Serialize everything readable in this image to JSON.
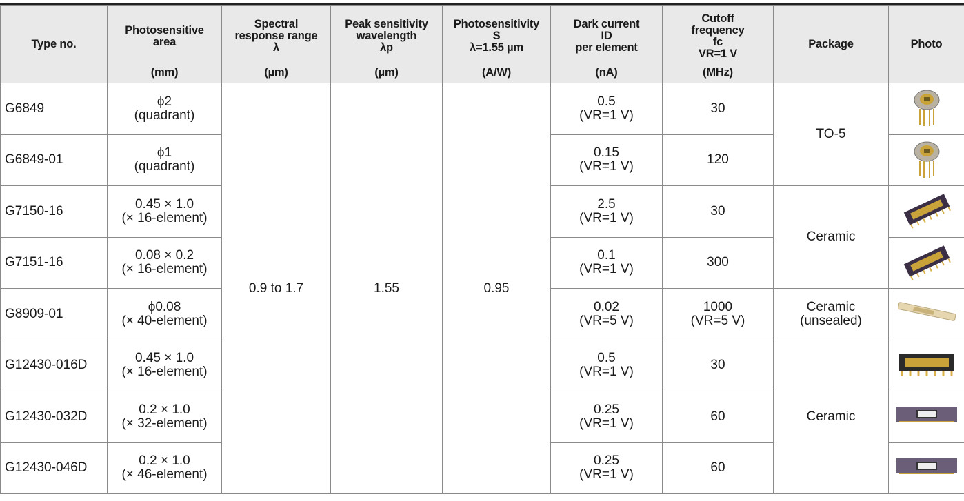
{
  "table": {
    "header": [
      {
        "lines": [
          "Type no."
        ]
      },
      {
        "lines": [
          "Photosensitive",
          "area"
        ],
        "unit": "(mm)"
      },
      {
        "lines": [
          "Spectral",
          "response range",
          "λ"
        ],
        "unit": "(µm)"
      },
      {
        "lines": [
          "Peak sensitivity",
          "wavelength",
          "λp"
        ],
        "unit": "(µm)"
      },
      {
        "lines": [
          "Photosensitivity",
          "S",
          "λ=1.55 µm"
        ],
        "unit": "(A/W)"
      },
      {
        "lines": [
          "Dark current",
          "ID",
          "per element"
        ],
        "unit": "(nA)"
      },
      {
        "lines": [
          "Cutoff",
          "frequency",
          "fc",
          "VR=1 V"
        ],
        "unit": "(MHz)"
      },
      {
        "lines": [
          "Package"
        ]
      },
      {
        "lines": [
          "Photo"
        ]
      }
    ],
    "spectral_range": "0.9 to 1.7",
    "peak_wavelength": "1.55",
    "photosensitivity": "0.95",
    "rows": [
      {
        "type": "G6849",
        "area": [
          "ϕ2",
          "(quadrant)"
        ],
        "dark": [
          "0.5",
          "(VR=1 V)"
        ],
        "cutoff": [
          "30"
        ],
        "package": "TO-5"
      },
      {
        "type": "G6849-01",
        "area": [
          "ϕ1",
          "(quadrant)"
        ],
        "dark": [
          "0.15",
          "(VR=1 V)"
        ],
        "cutoff": [
          "120"
        ],
        "package": null
      },
      {
        "type": "G7150-16",
        "area": [
          "0.45 × 1.0",
          "(× 16-element)"
        ],
        "dark": [
          "2.5",
          "(VR=1 V)"
        ],
        "cutoff": [
          "30"
        ],
        "package": "Ceramic"
      },
      {
        "type": "G7151-16",
        "area": [
          "0.08 × 0.2",
          "(× 16-element)"
        ],
        "dark": [
          "0.1",
          "(VR=1 V)"
        ],
        "cutoff": [
          "300"
        ],
        "package": null
      },
      {
        "type": "G8909-01",
        "area": [
          "ϕ0.08",
          "(× 40-element)"
        ],
        "dark": [
          "0.02",
          "(VR=5 V)"
        ],
        "cutoff": [
          "1000",
          "(VR=5 V)"
        ],
        "package": "Ceramic (unsealed)"
      },
      {
        "type": "G12430-016D",
        "area": [
          "0.45 × 1.0",
          "(× 16-element)"
        ],
        "dark": [
          "0.5",
          "(VR=1 V)"
        ],
        "cutoff": [
          "30"
        ],
        "package": "Ceramic"
      },
      {
        "type": "G12430-032D",
        "area": [
          "0.2 × 1.0",
          "(× 32-element)"
        ],
        "dark": [
          "0.25",
          "(VR=1 V)"
        ],
        "cutoff": [
          "60"
        ],
        "package": null
      },
      {
        "type": "G12430-046D",
        "area": [
          "0.2 × 1.0",
          "(× 46-element)"
        ],
        "dark": [
          "0.25",
          "(VR=1 V)"
        ],
        "cutoff": [
          "60"
        ],
        "package": null
      }
    ]
  }
}
